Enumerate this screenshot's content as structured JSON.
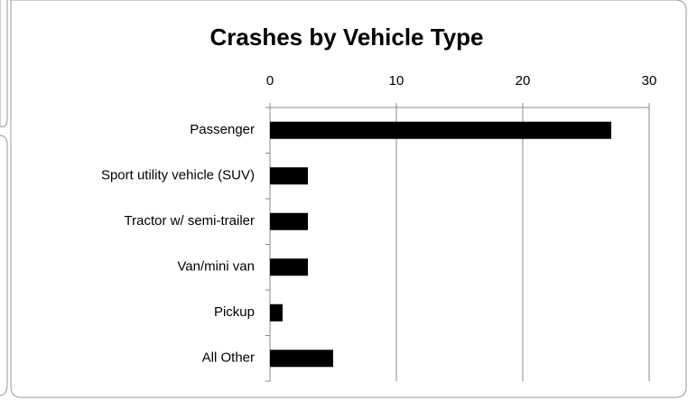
{
  "chart_data": {
    "type": "bar",
    "orientation": "horizontal",
    "title": "Crashes by Vehicle Type",
    "categories": [
      "Passenger",
      "Sport utility vehicle (SUV)",
      "Tractor w/ semi-trailer",
      "Van/mini van",
      "Pickup",
      "All Other"
    ],
    "values": [
      27,
      3,
      3,
      3,
      1,
      5
    ],
    "color": "#000000",
    "xlim": [
      0,
      30
    ],
    "xticks": [
      0,
      10,
      20,
      30
    ],
    "grid": true
  }
}
